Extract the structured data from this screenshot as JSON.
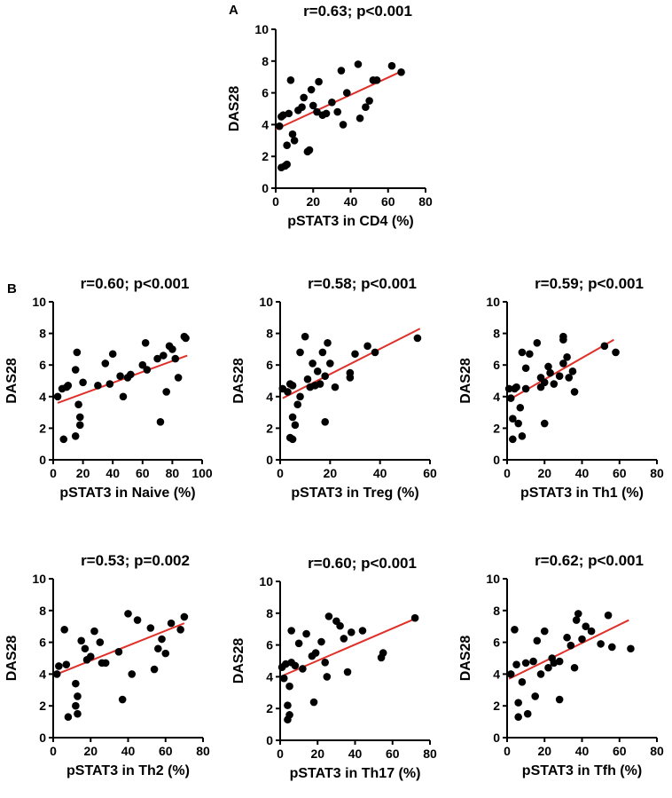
{
  "panel_letters": [
    "A",
    "B"
  ],
  "chart_data": [
    {
      "type": "scatter",
      "id": "cd4",
      "title": "r=0.63; p<0.001",
      "xlabel": "pSTAT3 in CD4 (%)",
      "ylabel": "DAS28",
      "xlim": [
        0,
        80
      ],
      "ylim": [
        0,
        10
      ],
      "xticks": [
        0,
        20,
        40,
        60,
        80
      ],
      "yticks": [
        0,
        2,
        4,
        6,
        8,
        10
      ],
      "fit": [
        [
          0,
          3.7
        ],
        [
          68,
          7.4
        ]
      ],
      "points": [
        [
          2,
          3.9
        ],
        [
          3,
          4.5
        ],
        [
          3,
          1.3
        ],
        [
          4,
          4.6
        ],
        [
          5,
          1.4
        ],
        [
          6,
          2.7
        ],
        [
          6,
          1.5
        ],
        [
          7,
          4.7
        ],
        [
          8,
          6.8
        ],
        [
          9,
          3.4
        ],
        [
          10,
          3.0
        ],
        [
          12,
          4.9
        ],
        [
          14,
          5.1
        ],
        [
          15,
          5.7
        ],
        [
          17,
          2.3
        ],
        [
          18,
          2.4
        ],
        [
          19,
          6.2
        ],
        [
          20,
          5.2
        ],
        [
          22,
          4.8
        ],
        [
          23,
          6.7
        ],
        [
          25,
          4.6
        ],
        [
          27,
          4.7
        ],
        [
          30,
          5.4
        ],
        [
          33,
          4.8
        ],
        [
          35,
          7.4
        ],
        [
          36,
          4.0
        ],
        [
          38,
          6.0
        ],
        [
          44,
          7.8
        ],
        [
          45,
          4.4
        ],
        [
          48,
          5.1
        ],
        [
          50,
          5.5
        ],
        [
          52,
          6.8
        ],
        [
          54,
          6.8
        ],
        [
          62,
          7.7
        ],
        [
          67,
          7.3
        ]
      ]
    },
    {
      "type": "scatter",
      "id": "naive",
      "title": "r=0.60; p<0.001",
      "xlabel": "pSTAT3 in Naive (%)",
      "ylabel": "DAS28",
      "xlim": [
        0,
        100
      ],
      "ylim": [
        0,
        10
      ],
      "xticks": [
        0,
        20,
        40,
        60,
        80,
        100
      ],
      "yticks": [
        0,
        2,
        4,
        6,
        8,
        10
      ],
      "fit": [
        [
          3,
          3.6
        ],
        [
          90,
          6.6
        ]
      ],
      "points": [
        [
          3,
          4.0
        ],
        [
          6,
          4.5
        ],
        [
          7,
          1.3
        ],
        [
          9,
          4.6
        ],
        [
          10,
          4.7
        ],
        [
          15,
          1.5
        ],
        [
          15,
          5.7
        ],
        [
          16,
          6.8
        ],
        [
          17,
          3.5
        ],
        [
          18,
          2.2
        ],
        [
          18,
          2.7
        ],
        [
          20,
          4.9
        ],
        [
          30,
          4.7
        ],
        [
          35,
          6.1
        ],
        [
          38,
          4.8
        ],
        [
          40,
          6.7
        ],
        [
          45,
          5.3
        ],
        [
          47,
          4.0
        ],
        [
          50,
          5.2
        ],
        [
          52,
          5.4
        ],
        [
          60,
          6.0
        ],
        [
          62,
          7.4
        ],
        [
          63,
          5.7
        ],
        [
          70,
          6.4
        ],
        [
          72,
          2.4
        ],
        [
          74,
          6.6
        ],
        [
          76,
          4.3
        ],
        [
          78,
          7.2
        ],
        [
          80,
          7.0
        ],
        [
          82,
          6.4
        ],
        [
          84,
          5.2
        ],
        [
          88,
          7.8
        ],
        [
          89,
          7.7
        ]
      ]
    },
    {
      "type": "scatter",
      "id": "treg",
      "title": "r=0.58; p<0.001",
      "xlabel": "pSTAT3 in Treg (%)",
      "ylabel": "DAS28",
      "xlim": [
        0,
        60
      ],
      "ylim": [
        0,
        10
      ],
      "xticks": [
        0,
        20,
        40,
        60
      ],
      "yticks": [
        0,
        2,
        4,
        6,
        8,
        10
      ],
      "fit": [
        [
          1,
          3.9
        ],
        [
          56,
          8.3
        ]
      ],
      "points": [
        [
          1,
          4.5
        ],
        [
          3,
          4.3
        ],
        [
          4,
          1.4
        ],
        [
          4,
          4.8
        ],
        [
          5,
          1.3
        ],
        [
          5,
          2.7
        ],
        [
          5,
          4.7
        ],
        [
          6,
          2.2
        ],
        [
          7,
          3.5
        ],
        [
          8,
          6.8
        ],
        [
          8,
          4.0
        ],
        [
          10,
          7.8
        ],
        [
          11,
          5.1
        ],
        [
          12,
          4.6
        ],
        [
          13,
          6.1
        ],
        [
          14,
          4.7
        ],
        [
          15,
          5.6
        ],
        [
          16,
          4.8
        ],
        [
          17,
          6.8
        ],
        [
          18,
          5.3
        ],
        [
          18,
          2.4
        ],
        [
          19,
          7.4
        ],
        [
          20,
          6.1
        ],
        [
          22,
          4.6
        ],
        [
          28,
          5.2
        ],
        [
          28,
          5.5
        ],
        [
          30,
          6.7
        ],
        [
          35,
          7.2
        ],
        [
          38,
          6.8
        ],
        [
          55,
          7.7
        ]
      ]
    },
    {
      "type": "scatter",
      "id": "th1",
      "title": "r=0.59; p<0.001",
      "xlabel": "pSTAT3 in Th1 (%)",
      "ylabel": "DAS28",
      "xlim": [
        0,
        80
      ],
      "ylim": [
        0,
        10
      ],
      "xticks": [
        0,
        20,
        40,
        60,
        80
      ],
      "yticks": [
        0,
        2,
        4,
        6,
        8,
        10
      ],
      "fit": [
        [
          1,
          3.8
        ],
        [
          57,
          7.6
        ]
      ],
      "points": [
        [
          1,
          4.5
        ],
        [
          2,
          3.9
        ],
        [
          3,
          1.3
        ],
        [
          3,
          2.6
        ],
        [
          4,
          4.5
        ],
        [
          5,
          4.6
        ],
        [
          6,
          2.3
        ],
        [
          7,
          3.3
        ],
        [
          8,
          6.8
        ],
        [
          8,
          1.5
        ],
        [
          10,
          5.8
        ],
        [
          10,
          4.5
        ],
        [
          12,
          6.7
        ],
        [
          16,
          7.4
        ],
        [
          18,
          5.2
        ],
        [
          18,
          4.6
        ],
        [
          20,
          4.9
        ],
        [
          20,
          2.3
        ],
        [
          22,
          5.9
        ],
        [
          23,
          5.5
        ],
        [
          25,
          4.8
        ],
        [
          28,
          5.3
        ],
        [
          30,
          7.8
        ],
        [
          30,
          7.6
        ],
        [
          30,
          6.1
        ],
        [
          32,
          6.5
        ],
        [
          33,
          5.2
        ],
        [
          35,
          5.6
        ],
        [
          36,
          4.3
        ],
        [
          52,
          7.2
        ],
        [
          58,
          6.8
        ]
      ]
    },
    {
      "type": "scatter",
      "id": "th2",
      "title": "r=0.53; p=0.002",
      "xlabel": "pSTAT3 in Th2 (%)",
      "ylabel": "DAS28",
      "xlim": [
        0,
        80
      ],
      "ylim": [
        0,
        10
      ],
      "xticks": [
        0,
        20,
        40,
        60,
        80
      ],
      "yticks": [
        0,
        2,
        4,
        6,
        8,
        10
      ],
      "fit": [
        [
          2,
          4.0
        ],
        [
          70,
          7.2
        ]
      ],
      "points": [
        [
          2,
          4.0
        ],
        [
          3,
          4.5
        ],
        [
          6,
          6.8
        ],
        [
          7,
          4.6
        ],
        [
          8,
          1.3
        ],
        [
          12,
          3.4
        ],
        [
          12,
          2.0
        ],
        [
          13,
          2.6
        ],
        [
          13,
          1.5
        ],
        [
          15,
          6.1
        ],
        [
          17,
          5.6
        ],
        [
          18,
          4.9
        ],
        [
          20,
          5.1
        ],
        [
          22,
          6.7
        ],
        [
          25,
          6.0
        ],
        [
          26,
          4.7
        ],
        [
          28,
          4.7
        ],
        [
          35,
          5.4
        ],
        [
          37,
          2.4
        ],
        [
          40,
          7.8
        ],
        [
          42,
          4.0
        ],
        [
          45,
          7.4
        ],
        [
          52,
          6.9
        ],
        [
          54,
          4.3
        ],
        [
          56,
          5.6
        ],
        [
          58,
          6.2
        ],
        [
          60,
          5.3
        ],
        [
          63,
          7.2
        ],
        [
          68,
          6.8
        ],
        [
          70,
          7.6
        ]
      ]
    },
    {
      "type": "scatter",
      "id": "th17",
      "title": "r=0.60; p<0.001",
      "xlabel": "pSTAT3 in Th17 (%)",
      "ylabel": "DAS28",
      "xlim": [
        0,
        80
      ],
      "ylim": [
        0,
        10
      ],
      "xticks": [
        0,
        20,
        40,
        60,
        80
      ],
      "yticks": [
        0,
        2,
        4,
        6,
        8,
        10
      ],
      "fit": [
        [
          2,
          4.1
        ],
        [
          73,
          7.7
        ]
      ],
      "points": [
        [
          1,
          4.6
        ],
        [
          2,
          3.9
        ],
        [
          3,
          4.8
        ],
        [
          4,
          2.2
        ],
        [
          4,
          1.3
        ],
        [
          5,
          1.6
        ],
        [
          5,
          3.4
        ],
        [
          6,
          6.9
        ],
        [
          6,
          4.9
        ],
        [
          8,
          4.7
        ],
        [
          10,
          6.1
        ],
        [
          12,
          4.5
        ],
        [
          14,
          6.7
        ],
        [
          17,
          5.3
        ],
        [
          18,
          2.4
        ],
        [
          19,
          5.5
        ],
        [
          22,
          6.2
        ],
        [
          24,
          4.9
        ],
        [
          25,
          4.0
        ],
        [
          26,
          7.8
        ],
        [
          30,
          7.5
        ],
        [
          32,
          7.2
        ],
        [
          34,
          6.4
        ],
        [
          36,
          4.3
        ],
        [
          38,
          6.8
        ],
        [
          44,
          6.9
        ],
        [
          54,
          5.2
        ],
        [
          55,
          5.5
        ],
        [
          72,
          7.7
        ]
      ]
    },
    {
      "type": "scatter",
      "id": "tfh",
      "title": "r=0.62; p<0.001",
      "xlabel": "pSTAT3 in Tfh (%)",
      "ylabel": "DAS28",
      "xlim": [
        0,
        80
      ],
      "ylim": [
        0,
        10
      ],
      "xticks": [
        0,
        20,
        40,
        60,
        80
      ],
      "yticks": [
        0,
        2,
        4,
        6,
        8,
        10
      ],
      "fit": [
        [
          1,
          3.7
        ],
        [
          65,
          7.4
        ]
      ],
      "points": [
        [
          2,
          4.0
        ],
        [
          4,
          6.8
        ],
        [
          5,
          4.6
        ],
        [
          6,
          2.2
        ],
        [
          6,
          1.3
        ],
        [
          8,
          3.5
        ],
        [
          10,
          4.7
        ],
        [
          11,
          1.5
        ],
        [
          14,
          4.8
        ],
        [
          15,
          2.6
        ],
        [
          16,
          6.1
        ],
        [
          18,
          4.0
        ],
        [
          20,
          6.7
        ],
        [
          22,
          4.4
        ],
        [
          24,
          5.0
        ],
        [
          25,
          4.7
        ],
        [
          28,
          4.8
        ],
        [
          28,
          2.4
        ],
        [
          32,
          6.3
        ],
        [
          34,
          5.8
        ],
        [
          36,
          4.4
        ],
        [
          37,
          7.4
        ],
        [
          38,
          7.8
        ],
        [
          40,
          6.2
        ],
        [
          42,
          7.0
        ],
        [
          45,
          6.7
        ],
        [
          50,
          5.9
        ],
        [
          54,
          7.7
        ],
        [
          56,
          5.7
        ],
        [
          66,
          5.6
        ]
      ]
    }
  ]
}
